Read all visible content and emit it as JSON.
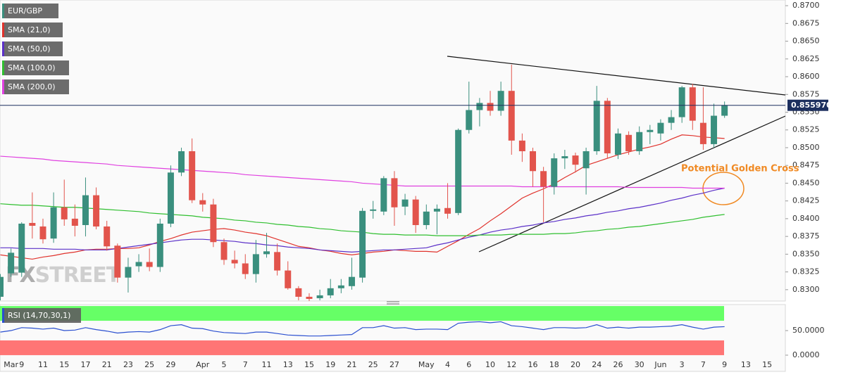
{
  "chart_data": {
    "type": "candlestick",
    "title": "EUR/GBP",
    "watermark": [
      "FX",
      "STREET"
    ],
    "annotation": {
      "text": "Potential Golden Cross",
      "color": "#f08a24"
    },
    "categories": [
      null,
      "Mar",
      "9",
      null,
      "11",
      null,
      "15",
      null,
      "17",
      null,
      "21",
      null,
      "23",
      null,
      "25",
      null,
      "29",
      null,
      null,
      "Apr",
      null,
      "5",
      null,
      "7",
      null,
      "11",
      null,
      "13",
      null,
      "15",
      null,
      "19",
      null,
      "21",
      null,
      "25",
      null,
      "27",
      null,
      null,
      "May",
      null,
      "4",
      null,
      "6",
      null,
      "10",
      null,
      "12",
      null,
      "16",
      null,
      "18",
      null,
      "20",
      null,
      "24",
      null,
      "26",
      null,
      "30",
      null,
      "Jun",
      null,
      "3",
      null,
      "7",
      null,
      "9",
      null,
      "13",
      null,
      "15"
    ],
    "up_color": "#3a8f7e",
    "down_color": "#e2544c",
    "open": [
      0.829,
      0.8323,
      0.8324,
      0.8394,
      0.8389,
      0.8372,
      0.8416,
      0.84,
      0.8391,
      0.8433,
      0.8389,
      0.8362,
      0.8317,
      0.8333,
      0.8339,
      0.8332,
      0.8393,
      0.8465,
      0.8495,
      0.8426,
      0.842,
      0.8367,
      0.8342,
      0.8337,
      0.8322,
      0.835,
      0.8353,
      0.8327,
      0.8302,
      0.829,
      0.8288,
      0.8292,
      0.8302,
      0.8305,
      0.8317,
      0.8411,
      0.841,
      0.8457,
      0.8417,
      0.8427,
      0.8391,
      0.841,
      0.8415,
      0.8408,
      0.8525,
      0.8553,
      0.8563,
      0.8552,
      0.858,
      0.851,
      0.8495,
      0.8467,
      0.8445,
      0.8485,
      0.8489,
      0.8471,
      0.8495,
      0.8566,
      0.849,
      0.8518,
      0.8495,
      0.8522,
      0.852,
      0.8535,
      0.8543,
      0.8585,
      0.8535,
      0.8505,
      0.8545,
      null,
      null,
      null,
      null
    ],
    "high": [
      0.8322,
      0.8358,
      0.8395,
      0.8437,
      0.84,
      0.8437,
      0.8455,
      0.842,
      0.8458,
      0.8444,
      0.8397,
      0.8365,
      0.8345,
      0.835,
      0.8358,
      0.84,
      0.8475,
      0.85,
      0.8513,
      0.8436,
      0.8428,
      0.8372,
      0.8355,
      0.835,
      0.837,
      0.838,
      0.8365,
      0.834,
      0.8305,
      0.8295,
      0.83,
      0.8315,
      0.8315,
      0.8345,
      0.8415,
      0.8425,
      0.846,
      0.8467,
      0.8435,
      0.8432,
      0.842,
      0.842,
      0.845,
      0.8527,
      0.8593,
      0.857,
      0.858,
      0.8593,
      0.8617,
      0.852,
      0.85,
      0.8473,
      0.8492,
      0.8497,
      0.8493,
      0.85,
      0.8587,
      0.857,
      0.8527,
      0.8523,
      0.853,
      0.8532,
      0.854,
      0.8553,
      0.8587,
      0.859,
      0.8585,
      0.8562,
      0.8565,
      null,
      null,
      null,
      null
    ],
    "low": [
      0.8285,
      0.8318,
      0.8318,
      0.8372,
      0.8365,
      0.8366,
      0.839,
      0.8375,
      0.8375,
      0.8385,
      0.8355,
      0.831,
      0.8296,
      0.8325,
      0.8326,
      0.8325,
      0.8388,
      0.846,
      0.8422,
      0.841,
      0.836,
      0.8335,
      0.833,
      0.8315,
      0.831,
      0.8345,
      0.832,
      0.83,
      0.8285,
      0.828,
      0.8285,
      0.8288,
      0.8295,
      0.83,
      0.831,
      0.84,
      0.8405,
      0.839,
      0.8405,
      0.838,
      0.8385,
      0.8378,
      0.84,
      0.8405,
      0.852,
      0.853,
      0.8545,
      0.8545,
      0.849,
      0.848,
      0.8445,
      0.8395,
      0.8434,
      0.847,
      0.8465,
      0.8434,
      0.849,
      0.8485,
      0.8484,
      0.849,
      0.849,
      0.8505,
      0.851,
      0.8525,
      0.8535,
      0.8525,
      0.8497,
      0.85,
      0.8542,
      null,
      null,
      null,
      null
    ],
    "close": [
      0.8318,
      0.8352,
      0.8393,
      0.839,
      0.8371,
      0.8416,
      0.8399,
      0.839,
      0.8433,
      0.8389,
      0.8361,
      0.8317,
      0.8332,
      0.8339,
      0.8332,
      0.8393,
      0.8465,
      0.8495,
      0.8426,
      0.842,
      0.8367,
      0.8342,
      0.8337,
      0.8322,
      0.835,
      0.8354,
      0.8327,
      0.8302,
      0.829,
      0.8287,
      0.8292,
      0.8302,
      0.8306,
      0.8318,
      0.8411,
      0.8413,
      0.8457,
      0.8416,
      0.8427,
      0.8391,
      0.841,
      0.8414,
      0.8407,
      0.8525,
      0.8553,
      0.8563,
      0.8552,
      0.858,
      0.851,
      0.8495,
      0.8467,
      0.8445,
      0.8485,
      0.8488,
      0.8476,
      0.8495,
      0.8566,
      0.8492,
      0.852,
      0.8495,
      0.8522,
      0.8525,
      0.8535,
      0.8543,
      0.8585,
      0.8538,
      0.8505,
      0.8545,
      0.85597,
      null,
      null,
      null,
      null
    ],
    "series": [
      {
        "name": "SMA (21,0)",
        "color": "#e0322c",
        "values": [
          0.8349,
          0.8347,
          0.8345,
          0.8343,
          0.8346,
          0.8348,
          0.8351,
          0.8353,
          0.8356,
          0.8357,
          0.8357,
          0.8358,
          0.8358,
          0.8359,
          0.8363,
          0.8368,
          0.8372,
          0.8377,
          0.8381,
          0.8383,
          0.8385,
          0.8386,
          0.8384,
          0.8381,
          0.8379,
          0.8376,
          0.8371,
          0.8366,
          0.8361,
          0.8359,
          0.8356,
          0.8354,
          0.8351,
          0.8349,
          0.8351,
          0.8353,
          0.8354,
          0.8356,
          0.8355,
          0.8354,
          0.8354,
          0.8353,
          0.8361,
          0.8369,
          0.8378,
          0.8386,
          0.8397,
          0.8407,
          0.8418,
          0.8429,
          0.8436,
          0.8442,
          0.8449,
          0.8458,
          0.8466,
          0.8475,
          0.848,
          0.8485,
          0.849,
          0.8494,
          0.8498,
          0.8501,
          0.8505,
          0.8512,
          0.8518,
          0.8517,
          0.8515,
          0.8514,
          0.8513,
          null,
          null,
          null,
          null
        ]
      },
      {
        "name": "SMA (50,0)",
        "color": "#5b30c8",
        "values": [
          0.8359,
          0.8359,
          0.8358,
          0.8358,
          0.8358,
          0.8357,
          0.8357,
          0.8357,
          0.8356,
          0.8356,
          0.8356,
          0.8358,
          0.836,
          0.8362,
          0.8364,
          0.8366,
          0.8368,
          0.837,
          0.8371,
          0.8371,
          0.837,
          0.8369,
          0.8368,
          0.8366,
          0.8365,
          0.8363,
          0.8362,
          0.836,
          0.8359,
          0.8358,
          0.8356,
          0.8355,
          0.8354,
          0.8353,
          0.8354,
          0.8355,
          0.8356,
          0.8356,
          0.8357,
          0.8358,
          0.8359,
          0.8363,
          0.8366,
          0.837,
          0.8374,
          0.8377,
          0.8381,
          0.8384,
          0.8386,
          0.8389,
          0.8391,
          0.8394,
          0.8396,
          0.8399,
          0.8401,
          0.8404,
          0.8406,
          0.8409,
          0.8411,
          0.8414,
          0.8416,
          0.8419,
          0.8422,
          0.8426,
          0.8429,
          0.8433,
          0.8436,
          0.844,
          0.8443,
          null,
          null,
          null,
          null
        ]
      },
      {
        "name": "SMA (100,0)",
        "color": "#2fbf2f",
        "values": [
          0.8421,
          0.842,
          0.8419,
          0.8419,
          0.8418,
          0.8417,
          0.8416,
          0.8416,
          0.8415,
          0.8414,
          0.8413,
          0.8412,
          0.8411,
          0.841,
          0.8408,
          0.8407,
          0.8406,
          0.8405,
          0.8404,
          0.8402,
          0.8401,
          0.84,
          0.8398,
          0.8397,
          0.8395,
          0.8394,
          0.8392,
          0.8391,
          0.8389,
          0.8388,
          0.8386,
          0.8385,
          0.8383,
          0.8382,
          0.8381,
          0.8379,
          0.8378,
          0.8378,
          0.8377,
          0.8377,
          0.8377,
          0.8376,
          0.8376,
          0.8376,
          0.8376,
          0.8377,
          0.8377,
          0.8377,
          0.8378,
          0.8378,
          0.8378,
          0.8378,
          0.8379,
          0.8379,
          0.838,
          0.8382,
          0.8383,
          0.8385,
          0.8386,
          0.8388,
          0.8389,
          0.8391,
          0.8393,
          0.8395,
          0.8397,
          0.8399,
          0.8402,
          0.8404,
          0.8406,
          null,
          null,
          null,
          null
        ]
      },
      {
        "name": "SMA (200,0)",
        "color": "#e040e0",
        "values": [
          0.8488,
          0.8487,
          0.8486,
          0.8485,
          0.8484,
          0.8482,
          0.8481,
          0.848,
          0.8479,
          0.8478,
          0.8477,
          0.8475,
          0.8474,
          0.8473,
          0.8472,
          0.8471,
          0.847,
          0.8469,
          0.8468,
          0.8467,
          0.8466,
          0.8465,
          0.8464,
          0.8462,
          0.8461,
          0.846,
          0.8459,
          0.8458,
          0.8457,
          0.8456,
          0.8455,
          0.8454,
          0.8453,
          0.8452,
          0.845,
          0.8449,
          0.8448,
          0.8447,
          0.8446,
          0.8446,
          0.8446,
          0.8446,
          0.8446,
          0.8446,
          0.8446,
          0.8446,
          0.8446,
          0.8446,
          0.8446,
          0.8445,
          0.8445,
          0.8445,
          0.8445,
          0.8445,
          0.8445,
          0.8445,
          0.8445,
          0.8445,
          0.8445,
          0.8444,
          0.8444,
          0.8444,
          0.8444,
          0.8444,
          0.8444,
          0.8443,
          0.8443,
          0.8443,
          0.8443,
          null,
          null,
          null,
          null
        ]
      }
    ],
    "ylim": [
      0.8284,
      0.8708
    ],
    "yticks": [
      {
        "value": 0.83,
        "label": "0.8300"
      },
      {
        "value": 0.8325,
        "label": "0.8325"
      },
      {
        "value": 0.835,
        "label": "0.8350"
      },
      {
        "value": 0.8375,
        "label": "0.8375"
      },
      {
        "value": 0.84,
        "label": "0.8400"
      },
      {
        "value": 0.8425,
        "label": "0.8425"
      },
      {
        "value": 0.845,
        "label": "0.8450"
      },
      {
        "value": 0.8475,
        "label": "0.8475"
      },
      {
        "value": 0.85,
        "label": "0.8500"
      },
      {
        "value": 0.8525,
        "label": "0.8525"
      },
      {
        "value": 0.855,
        "label": "0.8550"
      },
      {
        "value": 0.8575,
        "label": "0.8575"
      },
      {
        "value": 0.86,
        "label": "0.8600"
      },
      {
        "value": 0.8625,
        "label": "0.8625"
      },
      {
        "value": 0.865,
        "label": "0.8650"
      },
      {
        "value": 0.8675,
        "label": "0.8675"
      },
      {
        "value": 0.87,
        "label": "0.8700"
      }
    ],
    "last_price": {
      "value": 0.85597,
      "label": "0.855970",
      "color": "#1c2f5e"
    },
    "rsi": {
      "name": "RSI (14,70,30,1)",
      "color": "#2a4fd0",
      "values": [
        47,
        50,
        56,
        55,
        53,
        55,
        50,
        51,
        56,
        52,
        49,
        45,
        47,
        48,
        47,
        52,
        60,
        62,
        55,
        54,
        49,
        46,
        45,
        44,
        47,
        47,
        44,
        41,
        40,
        39,
        39,
        40,
        41,
        42,
        56,
        56,
        60,
        55,
        56,
        52,
        53,
        53,
        52,
        65,
        67,
        68,
        66,
        68,
        60,
        58,
        55,
        52,
        56,
        56,
        55,
        56,
        62,
        55,
        57,
        55,
        57,
        57,
        58,
        59,
        62,
        57,
        53,
        57,
        58,
        null,
        null,
        null,
        null
      ],
      "ylim": [
        -33,
        103
      ],
      "yticks": [
        {
          "value": 0,
          "label": "0.0000"
        },
        {
          "value": 50,
          "label": "50.0000"
        }
      ],
      "bands": [
        {
          "from": 70,
          "to": 100,
          "color": "#66ff66"
        },
        {
          "from": 0,
          "to": 30,
          "color": "#ff7575"
        }
      ]
    }
  }
}
